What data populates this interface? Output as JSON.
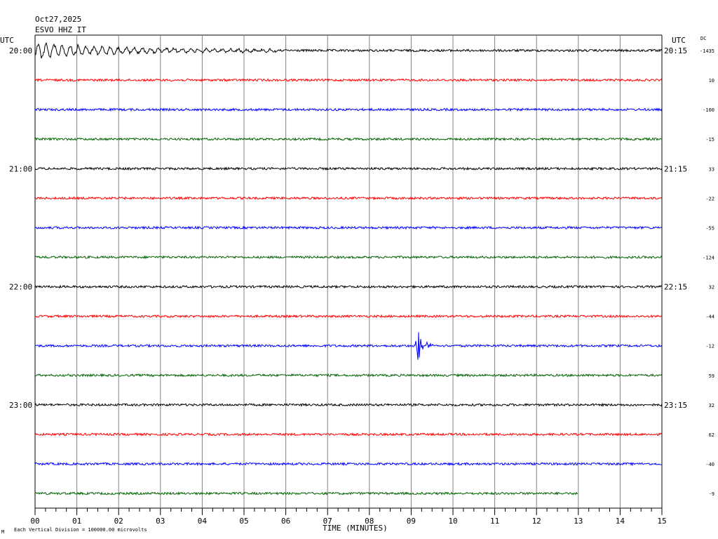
{
  "header": {
    "date": "Oct27,2025",
    "station": "ESVO HHZ IT"
  },
  "left_tz": "UTC",
  "right_tz": "UTC",
  "dc_label": "DC",
  "xlabel": "TIME (MINUTES)",
  "footer_note": "Each Vertical Division = 100000.00 microvolts",
  "footer_mark": "M",
  "colors": [
    "#000000",
    "#ff0000",
    "#0000ff",
    "#006400"
  ],
  "chart_data": {
    "type": "line",
    "title": "",
    "xlabel": "TIME (MINUTES)",
    "xlim": [
      0,
      15
    ],
    "x_ticks": [
      "00",
      "01",
      "02",
      "03",
      "04",
      "05",
      "06",
      "07",
      "08",
      "09",
      "10",
      "11",
      "12",
      "13",
      "14",
      "15"
    ],
    "grid": "vertical, every minute",
    "rows": [
      {
        "left": "20:00",
        "right": "20:15",
        "dc": "-1435",
        "color": "#000000"
      },
      {
        "left": "",
        "right": "",
        "dc": "10",
        "color": "#ff0000"
      },
      {
        "left": "",
        "right": "",
        "dc": "-160",
        "color": "#0000ff"
      },
      {
        "left": "",
        "right": "",
        "dc": "-15",
        "color": "#006400"
      },
      {
        "left": "21:00",
        "right": "21:15",
        "dc": "33",
        "color": "#000000"
      },
      {
        "left": "",
        "right": "",
        "dc": "-22",
        "color": "#ff0000"
      },
      {
        "left": "",
        "right": "",
        "dc": "-55",
        "color": "#0000ff"
      },
      {
        "left": "",
        "right": "",
        "dc": "-124",
        "color": "#006400"
      },
      {
        "left": "22:00",
        "right": "22:15",
        "dc": "32",
        "color": "#000000"
      },
      {
        "left": "",
        "right": "",
        "dc": "-44",
        "color": "#ff0000"
      },
      {
        "left": "",
        "right": "",
        "dc": "-12",
        "color": "#0000ff"
      },
      {
        "left": "",
        "right": "",
        "dc": "59",
        "color": "#006400"
      },
      {
        "left": "23:00",
        "right": "23:15",
        "dc": "32",
        "color": "#000000"
      },
      {
        "left": "",
        "right": "",
        "dc": "62",
        "color": "#ff0000"
      },
      {
        "left": "",
        "right": "",
        "dc": "-40",
        "color": "#0000ff"
      },
      {
        "left": "",
        "right": "",
        "dc": "-9",
        "color": "#006400"
      }
    ],
    "events": [
      {
        "row": 0,
        "start_min": 0.0,
        "end_min": 6.0,
        "kind": "teleseism surface waves (decaying)"
      },
      {
        "row": 10,
        "start_min": 9.1,
        "end_min": 10.0,
        "kind": "local event"
      }
    ],
    "last_row_end_min": 13.0
  }
}
